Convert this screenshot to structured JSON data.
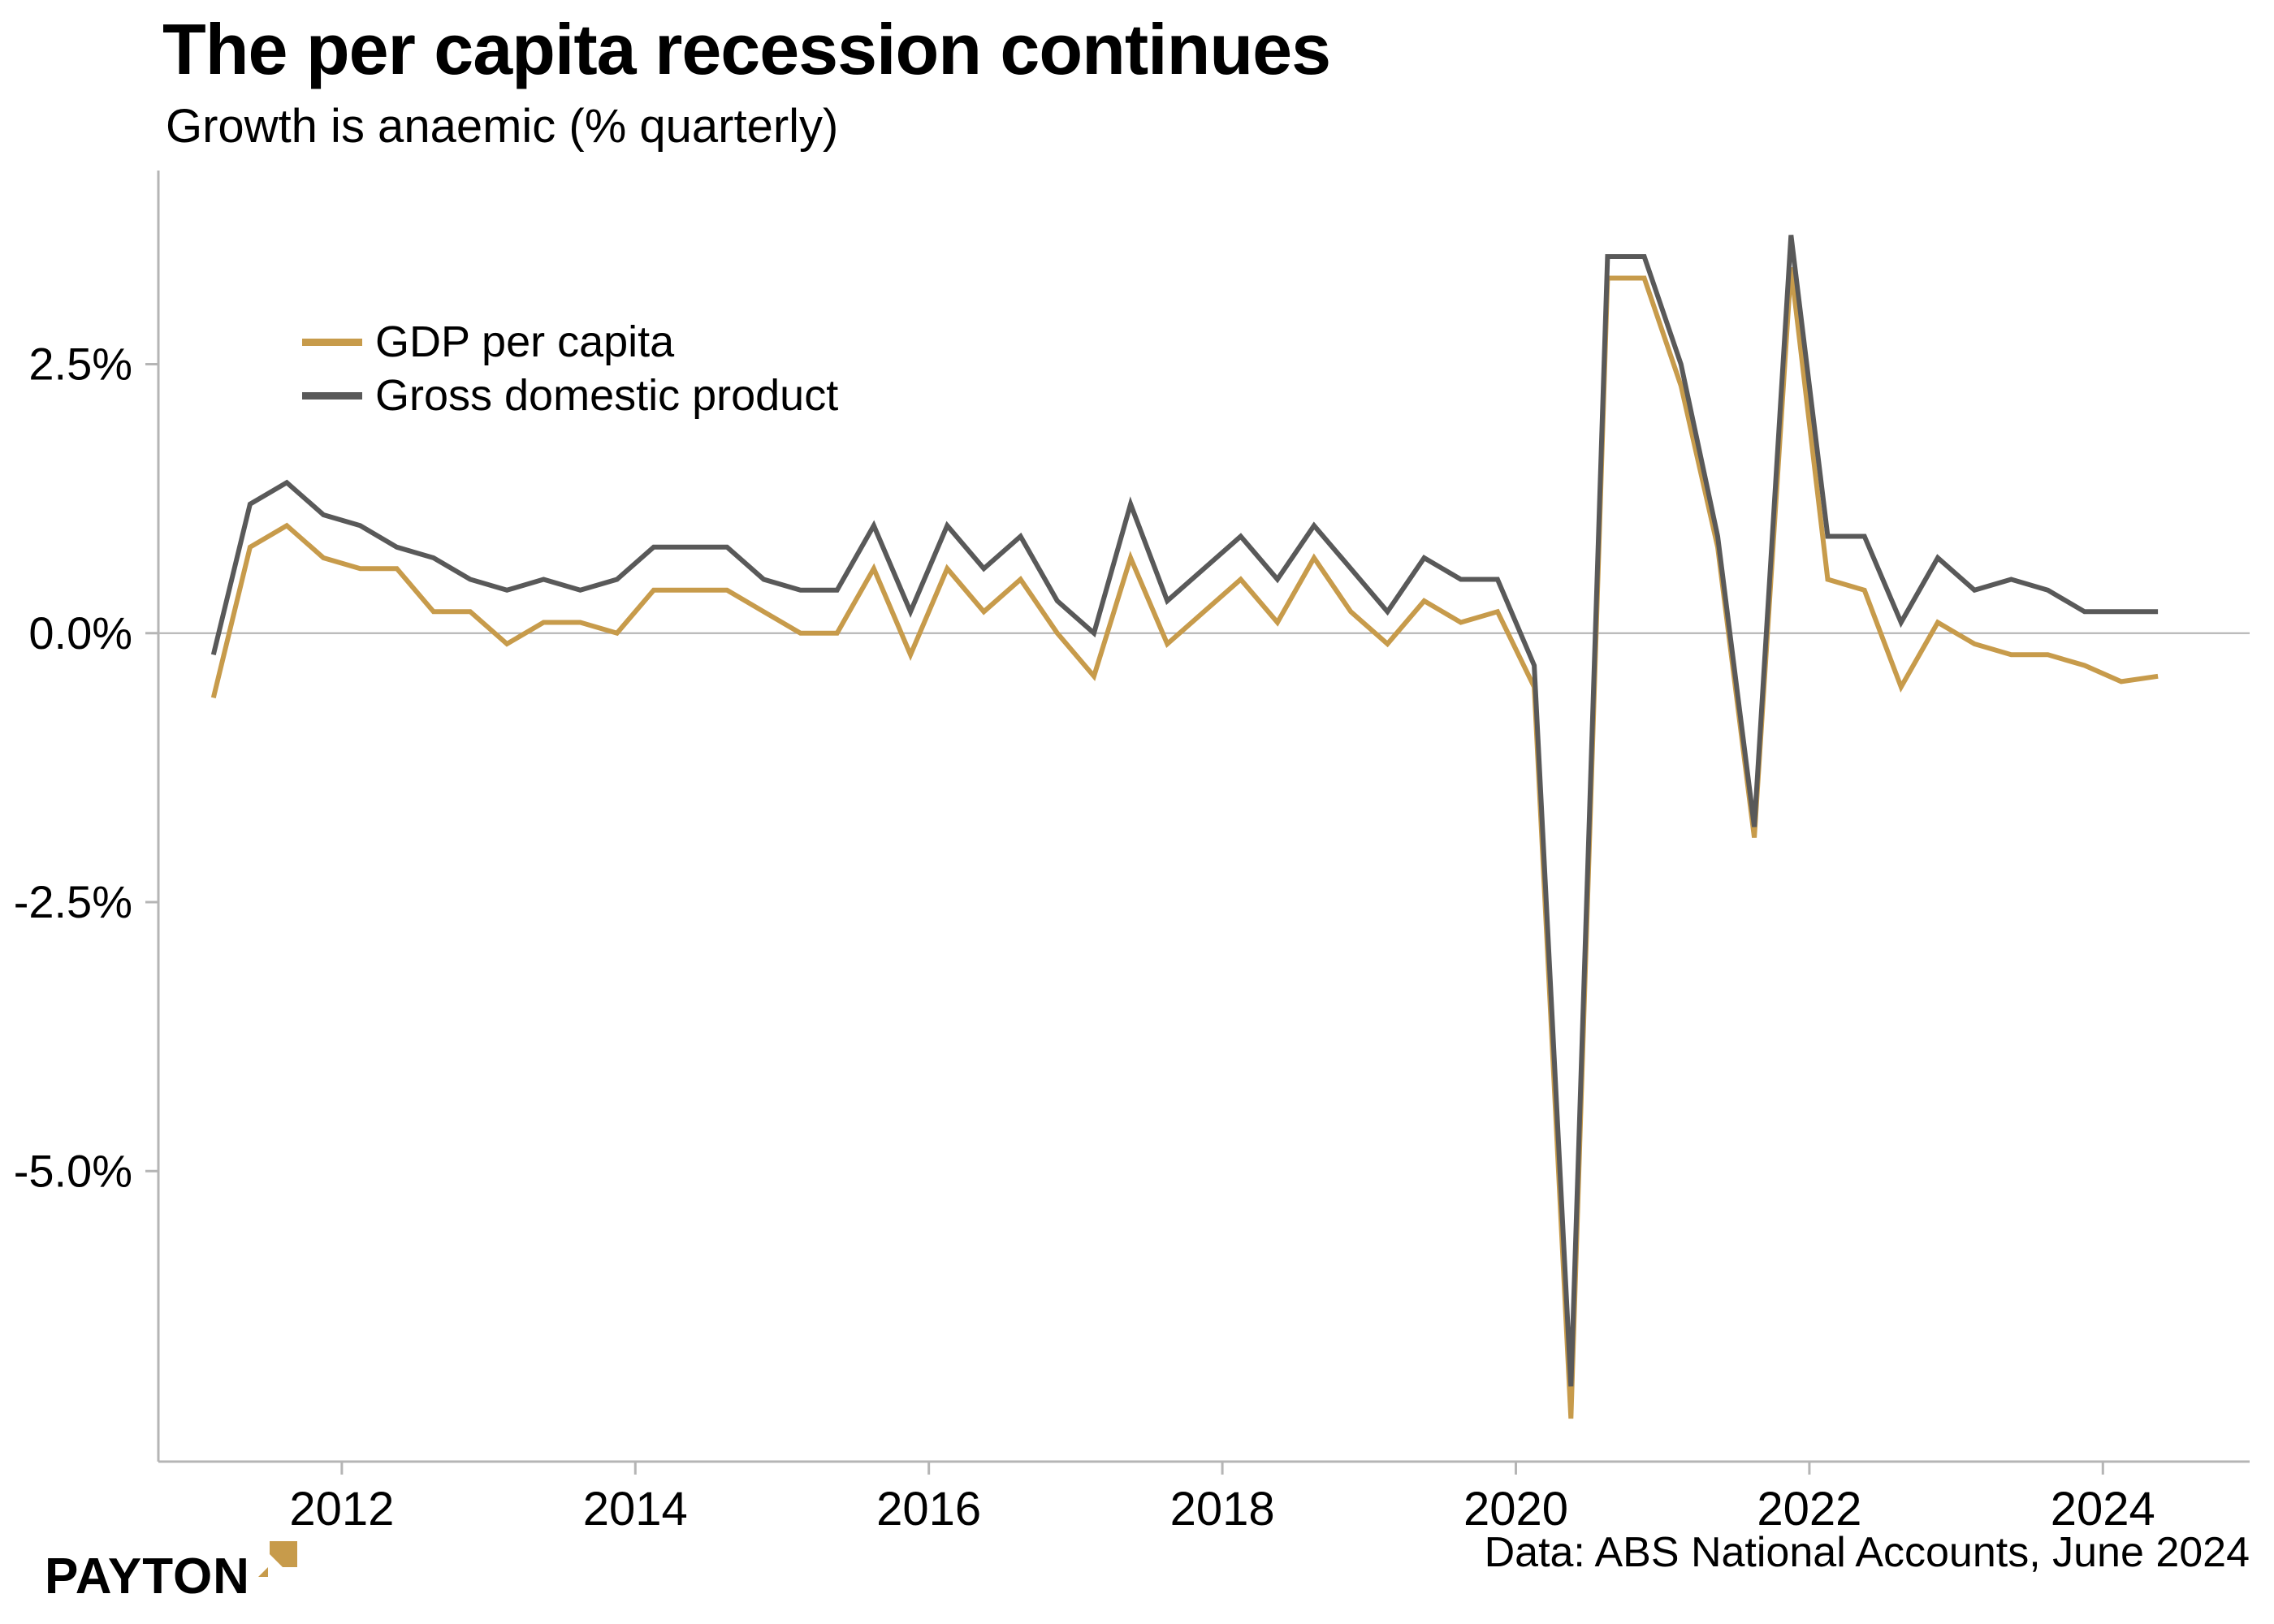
{
  "title": "The per capita recession continues",
  "subtitle": "Growth is anaemic (% quarterly)",
  "caption": "Data: ABS National Accounts, June 2024",
  "logo": {
    "text": "PAYTON"
  },
  "colors": {
    "gold": "#C79B4B",
    "gray": "#595959",
    "axis": "#B5B5B5",
    "zero_line": "#AFAFAF",
    "text": "#000000"
  },
  "chart_data": {
    "type": "line",
    "frequency": "quarterly",
    "x_start_year": 2011,
    "x_start_quarter": 1,
    "xticks": [
      "2012",
      "2014",
      "2016",
      "2018",
      "2020",
      "2022",
      "2024"
    ],
    "yticks": [
      {
        "value": 2.5,
        "label": "2.5%"
      },
      {
        "value": 0.0,
        "label": "0.0%"
      },
      {
        "value": -2.5,
        "label": "-2.5%"
      },
      {
        "value": -5.0,
        "label": "-5.0%"
      }
    ],
    "ylim": [
      -7.7,
      4.3
    ],
    "xlim": [
      2010.75,
      2025.0
    ],
    "grid": "zero-line-only",
    "legend_position": "top-left-inside",
    "series": [
      {
        "name": "GDP per capita",
        "color": "#C79B4B",
        "values": [
          -0.6,
          0.8,
          1.0,
          0.7,
          0.6,
          0.6,
          0.2,
          0.2,
          -0.1,
          0.1,
          0.1,
          0.0,
          0.4,
          0.4,
          0.4,
          0.2,
          0.0,
          0.0,
          0.6,
          -0.2,
          0.6,
          0.2,
          0.5,
          0.0,
          -0.4,
          0.7,
          -0.1,
          0.2,
          0.5,
          0.1,
          0.7,
          0.2,
          -0.1,
          0.3,
          0.1,
          0.2,
          -0.5,
          -7.3,
          3.3,
          3.3,
          2.3,
          0.8,
          -1.9,
          3.4,
          0.5,
          0.4,
          -0.5,
          0.1,
          -0.1,
          -0.2,
          -0.2,
          -0.3,
          -0.45,
          -0.4
        ]
      },
      {
        "name": "Gross domestic product",
        "color": "#595959",
        "values": [
          -0.2,
          1.2,
          1.4,
          1.1,
          1.0,
          0.8,
          0.7,
          0.5,
          0.4,
          0.5,
          0.4,
          0.5,
          0.8,
          0.8,
          0.8,
          0.5,
          0.4,
          0.4,
          1.0,
          0.2,
          1.0,
          0.6,
          0.9,
          0.3,
          0.0,
          1.2,
          0.3,
          0.6,
          0.9,
          0.5,
          1.0,
          0.6,
          0.2,
          0.7,
          0.5,
          0.5,
          -0.3,
          -7.0,
          3.5,
          3.5,
          2.5,
          0.9,
          -1.8,
          3.7,
          0.9,
          0.9,
          0.1,
          0.7,
          0.4,
          0.5,
          0.4,
          0.2,
          0.2,
          0.2
        ]
      }
    ]
  }
}
